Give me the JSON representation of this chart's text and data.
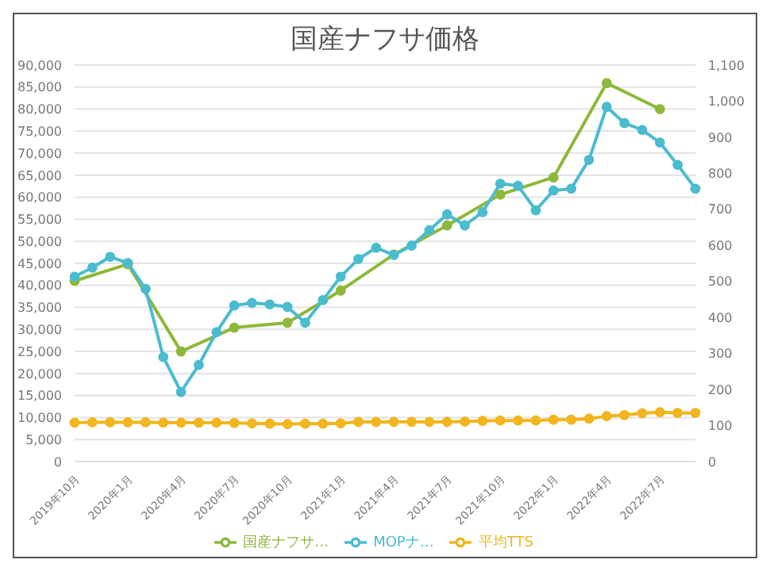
{
  "chart_data": {
    "type": "line",
    "title": "国産ナフサ価格",
    "categories": [
      "2019年10月",
      null,
      null,
      "2020年1月",
      null,
      null,
      "2020年4月",
      null,
      null,
      "2020年7月",
      null,
      null,
      "2020年10月",
      null,
      null,
      "2021年1月",
      null,
      null,
      "2021年4月",
      null,
      null,
      "2021年7月",
      null,
      null,
      "2021年10月",
      null,
      null,
      "2022年1月",
      null,
      null,
      "2022年4月",
      null,
      null,
      "2022年7月",
      null,
      null
    ],
    "series": [
      {
        "name": "国産ナフサ…",
        "color": "#8db83a",
        "values": [
          41000,
          null,
          null,
          44800,
          null,
          null,
          25000,
          null,
          null,
          30400,
          null,
          null,
          31500,
          null,
          null,
          38800,
          null,
          null,
          47000,
          null,
          null,
          53600,
          null,
          null,
          60600,
          null,
          null,
          64500,
          null,
          null,
          85900,
          null,
          null,
          80000,
          null,
          null
        ]
      },
      {
        "name": "MOPナ…",
        "color": "#4bbccf",
        "axis": "y2",
        "values": [
          513,
          538,
          568,
          551,
          479,
          290,
          193,
          268,
          359,
          433,
          440,
          436,
          429,
          385,
          448,
          513,
          562,
          593,
          573,
          599,
          642,
          686,
          655,
          692,
          771,
          765,
          697,
          752,
          757,
          837,
          984,
          939,
          920,
          885,
          823,
          757
        ]
      },
      {
        "name": "平均TTS",
        "color": "#f2b51d",
        "axis": "y2",
        "values": [
          108,
          109,
          109,
          109,
          109,
          108,
          108,
          108,
          108,
          107,
          106,
          105,
          104,
          105,
          105,
          106,
          110,
          110,
          110,
          110,
          110,
          110,
          111,
          113,
          114,
          114,
          114,
          116,
          116,
          119,
          126,
          129,
          134,
          137,
          135,
          135
        ]
      }
    ],
    "ylim": [
      0,
      90000
    ],
    "yticks": [
      0,
      {
        "value": 5000,
        "label": "5,000"
      },
      {
        "value": 10000,
        "label": "10,000"
      },
      {
        "value": 15000,
        "label": "15,000"
      },
      {
        "value": 20000,
        "label": "20,000"
      },
      {
        "value": 25000,
        "label": "25,000"
      },
      {
        "value": 30000,
        "label": "30,000"
      },
      {
        "value": 35000,
        "label": "35,000"
      },
      {
        "value": 40000,
        "label": "40,000"
      },
      {
        "value": 45000,
        "label": "45,000"
      },
      {
        "value": 50000,
        "label": "50,000"
      },
      {
        "value": 55000,
        "label": "55,000"
      },
      {
        "value": 60000,
        "label": "60,000"
      },
      {
        "value": 65000,
        "label": "65,000"
      },
      {
        "value": 70000,
        "label": "70,000"
      },
      {
        "value": 75000,
        "label": "75,000"
      },
      {
        "value": 80000,
        "label": "80,000"
      },
      {
        "value": 85000,
        "label": "85,000"
      },
      {
        "value": 90000,
        "label": "90,000"
      }
    ],
    "y2lim": [
      0,
      1100
    ],
    "y2ticks": [
      0,
      100,
      200,
      300,
      400,
      500,
      600,
      700,
      800,
      900,
      {
        "value": 1000,
        "label": "1,000"
      },
      {
        "value": 1100,
        "label": "1,100"
      }
    ],
    "grid": "y",
    "legend": "bottom",
    "marker": "circle",
    "line_style": "solid"
  }
}
